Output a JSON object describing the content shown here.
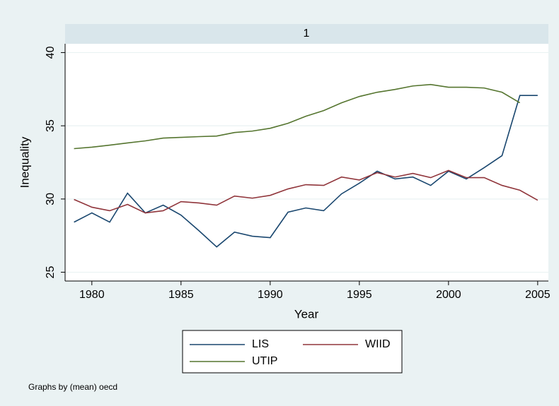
{
  "chart_data": {
    "type": "line",
    "subtitle": "1",
    "x_label": "Year",
    "y_label": "Inequality",
    "note": "Graphs by (mean) oecd",
    "x": [
      1979,
      1980,
      1981,
      1982,
      1983,
      1984,
      1985,
      1986,
      1987,
      1988,
      1989,
      1990,
      1991,
      1992,
      1993,
      1994,
      1995,
      1996,
      1997,
      1998,
      1999,
      2000,
      2001,
      2002,
      2003,
      2004,
      2005
    ],
    "series": [
      {
        "name": "LIS",
        "color": "#1a476f",
        "values": [
          28.42,
          29.05,
          28.42,
          30.4,
          29.05,
          29.58,
          28.9,
          27.84,
          26.73,
          27.74,
          27.46,
          27.36,
          29.1,
          29.39,
          29.2,
          30.35,
          31.08,
          31.9,
          31.37,
          31.5,
          30.93,
          31.9,
          31.37,
          32.14,
          32.96,
          37.07,
          37.07
        ]
      },
      {
        "name": "WIID",
        "color": "#90353b",
        "values": [
          29.97,
          29.44,
          29.2,
          29.63,
          29.05,
          29.2,
          29.82,
          29.73,
          29.58,
          30.2,
          30.06,
          30.25,
          30.69,
          30.98,
          30.93,
          31.5,
          31.3,
          31.8,
          31.5,
          31.75,
          31.46,
          31.95,
          31.46,
          31.46,
          30.93,
          30.6,
          29.92
        ]
      },
      {
        "name": "UTIP",
        "color": "#55752f",
        "values": [
          33.44,
          33.54,
          33.68,
          33.83,
          33.97,
          34.16,
          34.21,
          34.26,
          34.3,
          34.54,
          34.64,
          34.83,
          35.17,
          35.65,
          36.04,
          36.57,
          37.0,
          37.29,
          37.48,
          37.72,
          37.82,
          37.63,
          37.63,
          37.58,
          37.29,
          36.57,
          null
        ]
      }
    ],
    "xlim": [
      1978.5,
      2005.6
    ],
    "xticks": [
      1980,
      1985,
      1990,
      1995,
      2000,
      2005
    ],
    "ylim": [
      24.4,
      40.6
    ],
    "yticks": [
      25,
      30,
      35,
      40
    ],
    "grid": true,
    "legend": "bottom"
  }
}
